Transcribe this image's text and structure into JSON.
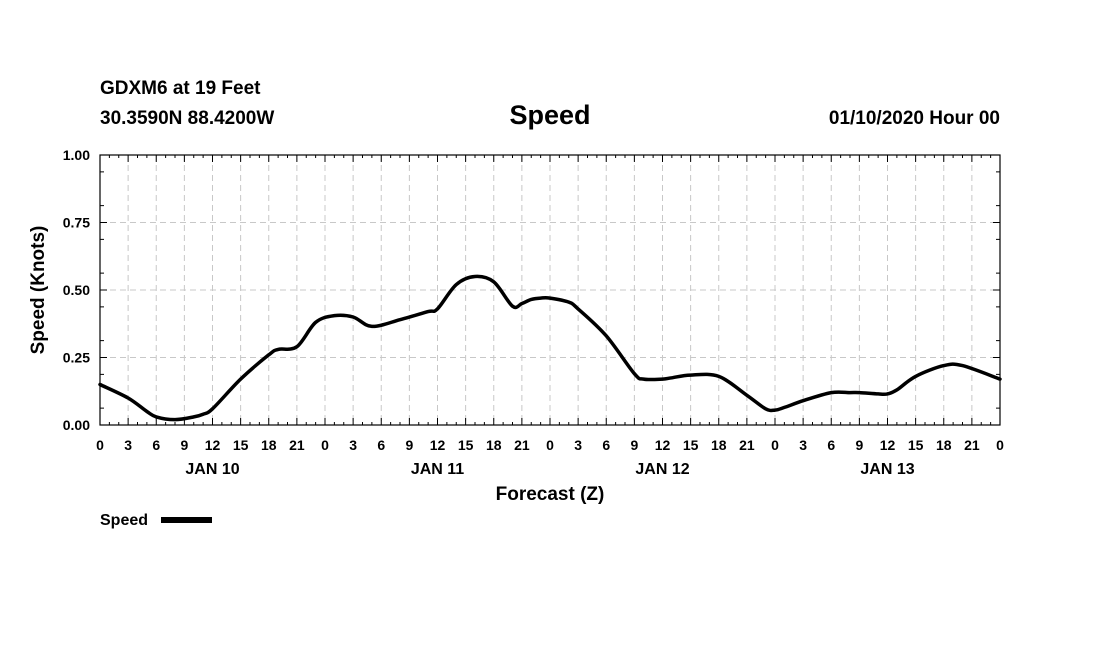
{
  "header": {
    "station": "GDXM6 at 19 Feet",
    "location": "30.3590N 88.4200W",
    "datetime": "01/10/2020 Hour 00"
  },
  "chart_data": {
    "type": "line",
    "title": "Speed",
    "xlabel": "Forecast (Z)",
    "ylabel": "Speed (Knots)",
    "ylim": [
      0,
      1
    ],
    "xlim": [
      0,
      96
    ],
    "grid": true,
    "legend_position": "bottom-left",
    "yticks": [
      "0.00",
      "0.25",
      "0.50",
      "0.75",
      "1.00"
    ],
    "xticks": [
      "0",
      "3",
      "6",
      "9",
      "12",
      "15",
      "18",
      "21",
      "0",
      "3",
      "6",
      "9",
      "12",
      "15",
      "18",
      "21",
      "0",
      "3",
      "6",
      "9",
      "12",
      "15",
      "18",
      "21",
      "0",
      "3",
      "6",
      "9",
      "12",
      "15",
      "18",
      "21",
      "0"
    ],
    "day_labels": [
      {
        "label": "JAN 10",
        "hour": 12
      },
      {
        "label": "JAN 11",
        "hour": 36
      },
      {
        "label": "JAN 12",
        "hour": 60
      },
      {
        "label": "JAN 13",
        "hour": 84
      }
    ],
    "series": [
      {
        "name": "Speed",
        "color": "#000000",
        "x": [
          0,
          3,
          5,
          6,
          8,
          10,
          11,
          12,
          15,
          18,
          19,
          21,
          23,
          25,
          27,
          29,
          32,
          35,
          36,
          38,
          40,
          42,
          44,
          45,
          46,
          47,
          48,
          50,
          51,
          54,
          57,
          58,
          60,
          61,
          63,
          66,
          69,
          71,
          72,
          73,
          75,
          78,
          80,
          81,
          83,
          84,
          85,
          87,
          90,
          92,
          96
        ],
        "y": [
          0.15,
          0.1,
          0.05,
          0.03,
          0.02,
          0.03,
          0.04,
          0.06,
          0.17,
          0.26,
          0.28,
          0.29,
          0.38,
          0.405,
          0.4,
          0.365,
          0.39,
          0.42,
          0.43,
          0.52,
          0.55,
          0.53,
          0.44,
          0.45,
          0.465,
          0.47,
          0.47,
          0.455,
          0.43,
          0.33,
          0.19,
          0.17,
          0.17,
          0.175,
          0.185,
          0.18,
          0.11,
          0.06,
          0.055,
          0.065,
          0.09,
          0.12,
          0.12,
          0.12,
          0.115,
          0.115,
          0.13,
          0.18,
          0.22,
          0.22,
          0.17
        ]
      }
    ]
  }
}
